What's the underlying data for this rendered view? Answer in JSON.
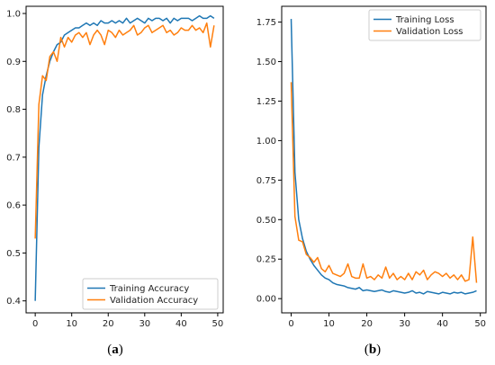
{
  "chart_data": [
    {
      "type": "line",
      "caption_open": "(",
      "caption_letter": "a",
      "caption_close": ")",
      "xlim": [
        -2.5,
        51.5
      ],
      "ylim": [
        0.375,
        1.015
      ],
      "xticks": [
        0,
        10,
        20,
        30,
        40,
        50
      ],
      "xtick_labels": [
        "0",
        "10",
        "20",
        "30",
        "40",
        "50"
      ],
      "yticks": [
        0.4,
        0.5,
        0.6,
        0.7,
        0.8,
        0.9,
        1.0
      ],
      "ytick_labels": [
        "0.4",
        "0.5",
        "0.6",
        "0.7",
        "0.8",
        "0.9",
        "1.0"
      ],
      "legend_position": "bottom-right",
      "series": [
        {
          "name": "Training Accuracy",
          "color": "#1f77b4",
          "x": [
            0,
            1,
            2,
            3,
            4,
            5,
            6,
            7,
            8,
            9,
            10,
            11,
            12,
            13,
            14,
            15,
            16,
            17,
            18,
            19,
            20,
            21,
            22,
            23,
            24,
            25,
            26,
            27,
            28,
            29,
            30,
            31,
            32,
            33,
            34,
            35,
            36,
            37,
            38,
            39,
            40,
            41,
            42,
            43,
            44,
            45,
            46,
            47,
            48,
            49
          ],
          "y": [
            0.4,
            0.72,
            0.83,
            0.87,
            0.9,
            0.92,
            0.935,
            0.94,
            0.955,
            0.96,
            0.965,
            0.97,
            0.97,
            0.975,
            0.98,
            0.975,
            0.98,
            0.975,
            0.985,
            0.98,
            0.98,
            0.985,
            0.98,
            0.985,
            0.98,
            0.99,
            0.98,
            0.985,
            0.99,
            0.985,
            0.98,
            0.99,
            0.985,
            0.99,
            0.99,
            0.985,
            0.99,
            0.98,
            0.99,
            0.985,
            0.99,
            0.99,
            0.99,
            0.985,
            0.99,
            0.995,
            0.99,
            0.99,
            0.995,
            0.99
          ]
        },
        {
          "name": "Validation Accuracy",
          "color": "#ff7f0e",
          "x": [
            0,
            1,
            2,
            3,
            4,
            5,
            6,
            7,
            8,
            9,
            10,
            11,
            12,
            13,
            14,
            15,
            16,
            17,
            18,
            19,
            20,
            21,
            22,
            23,
            24,
            25,
            26,
            27,
            28,
            29,
            30,
            31,
            32,
            33,
            34,
            35,
            36,
            37,
            38,
            39,
            40,
            41,
            42,
            43,
            44,
            45,
            46,
            47,
            48,
            49
          ],
          "y": [
            0.53,
            0.81,
            0.87,
            0.86,
            0.91,
            0.92,
            0.9,
            0.95,
            0.93,
            0.95,
            0.94,
            0.955,
            0.96,
            0.95,
            0.96,
            0.935,
            0.955,
            0.965,
            0.955,
            0.935,
            0.965,
            0.96,
            0.95,
            0.965,
            0.955,
            0.96,
            0.965,
            0.975,
            0.955,
            0.96,
            0.97,
            0.975,
            0.96,
            0.965,
            0.97,
            0.975,
            0.96,
            0.965,
            0.955,
            0.96,
            0.97,
            0.965,
            0.965,
            0.975,
            0.965,
            0.97,
            0.96,
            0.98,
            0.93,
            0.975
          ]
        }
      ]
    },
    {
      "type": "line",
      "caption_open": "(",
      "caption_letter": "b",
      "caption_close": ")",
      "xlim": [
        -2.5,
        51.5
      ],
      "ylim": [
        -0.09,
        1.85
      ],
      "xticks": [
        0,
        10,
        20,
        30,
        40,
        50
      ],
      "xtick_labels": [
        "0",
        "10",
        "20",
        "30",
        "40",
        "50"
      ],
      "yticks": [
        0.0,
        0.25,
        0.5,
        0.75,
        1.0,
        1.25,
        1.5,
        1.75
      ],
      "ytick_labels": [
        "0.00",
        "0.25",
        "0.50",
        "0.75",
        "1.00",
        "1.25",
        "1.50",
        "1.75"
      ],
      "legend_position": "top-right",
      "series": [
        {
          "name": "Training Loss",
          "color": "#1f77b4",
          "x": [
            0,
            1,
            2,
            3,
            4,
            5,
            6,
            7,
            8,
            9,
            10,
            11,
            12,
            13,
            14,
            15,
            16,
            17,
            18,
            19,
            20,
            21,
            22,
            23,
            24,
            25,
            26,
            27,
            28,
            29,
            30,
            31,
            32,
            33,
            34,
            35,
            36,
            37,
            38,
            39,
            40,
            41,
            42,
            43,
            44,
            45,
            46,
            47,
            48,
            49
          ],
          "y": [
            1.77,
            0.8,
            0.5,
            0.38,
            0.3,
            0.25,
            0.21,
            0.18,
            0.15,
            0.13,
            0.12,
            0.1,
            0.09,
            0.085,
            0.08,
            0.07,
            0.065,
            0.06,
            0.07,
            0.05,
            0.055,
            0.05,
            0.045,
            0.05,
            0.055,
            0.045,
            0.04,
            0.05,
            0.045,
            0.04,
            0.035,
            0.04,
            0.05,
            0.035,
            0.04,
            0.03,
            0.045,
            0.04,
            0.035,
            0.03,
            0.04,
            0.035,
            0.03,
            0.04,
            0.035,
            0.04,
            0.03,
            0.035,
            0.04,
            0.05
          ]
        },
        {
          "name": "Validation Loss",
          "color": "#ff7f0e",
          "x": [
            0,
            1,
            2,
            3,
            4,
            5,
            6,
            7,
            8,
            9,
            10,
            11,
            12,
            13,
            14,
            15,
            16,
            17,
            18,
            19,
            20,
            21,
            22,
            23,
            24,
            25,
            26,
            27,
            28,
            29,
            30,
            31,
            32,
            33,
            34,
            35,
            36,
            37,
            38,
            39,
            40,
            41,
            42,
            43,
            44,
            45,
            46,
            47,
            48,
            49
          ],
          "y": [
            1.37,
            0.52,
            0.37,
            0.36,
            0.28,
            0.26,
            0.23,
            0.26,
            0.19,
            0.17,
            0.21,
            0.16,
            0.15,
            0.14,
            0.16,
            0.22,
            0.14,
            0.13,
            0.13,
            0.22,
            0.13,
            0.14,
            0.12,
            0.15,
            0.13,
            0.2,
            0.13,
            0.16,
            0.12,
            0.14,
            0.12,
            0.16,
            0.12,
            0.17,
            0.15,
            0.18,
            0.12,
            0.15,
            0.17,
            0.16,
            0.14,
            0.16,
            0.13,
            0.15,
            0.12,
            0.15,
            0.11,
            0.12,
            0.39,
            0.1
          ]
        }
      ]
    }
  ]
}
